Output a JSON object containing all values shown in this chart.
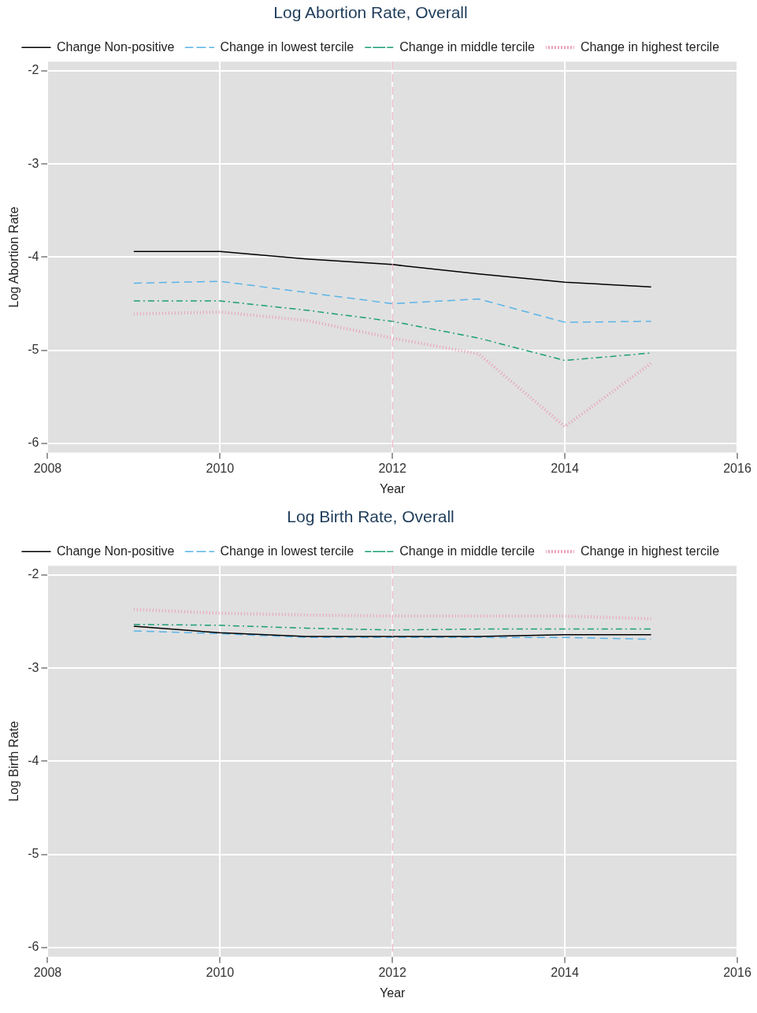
{
  "chart_data": [
    {
      "type": "line",
      "title": "Log Abortion Rate, Overall",
      "xlabel": "Year",
      "ylabel": "Log Abortion Rate",
      "x": [
        2009,
        2010,
        2011,
        2012,
        2013,
        2014,
        2015
      ],
      "series": [
        {
          "name": "Change Non-positive",
          "color": "#000000",
          "line_style": "solid",
          "values": [
            -3.94,
            -3.94,
            -4.02,
            -4.08,
            -4.18,
            -4.27,
            -4.32
          ]
        },
        {
          "name": "Change in lowest tercile",
          "color": "#5ab4e8",
          "line_style": "dashed",
          "values": [
            -4.28,
            -4.26,
            -4.38,
            -4.5,
            -4.45,
            -4.7,
            -4.69
          ]
        },
        {
          "name": "Change in middle tercile",
          "color": "#1a9e77",
          "line_style": "dashdot",
          "values": [
            -4.47,
            -4.47,
            -4.57,
            -4.69,
            -4.87,
            -5.11,
            -5.03
          ]
        },
        {
          "name": "Change in highest tercile",
          "color": "#e8a0b4",
          "line_style": "dotted",
          "values": [
            -4.61,
            -4.59,
            -4.68,
            -4.87,
            -5.04,
            -5.82,
            -5.14
          ]
        }
      ],
      "xlim": [
        2008,
        2016
      ],
      "xticks": [
        2008,
        2010,
        2012,
        2014,
        2016
      ],
      "ylim": [
        -6.1,
        -1.9
      ],
      "yticks": [
        -6,
        -5,
        -4,
        -3,
        -2
      ],
      "ref_lines": [
        {
          "axis": "x",
          "value": 2012,
          "color": "#e8a0b4",
          "line_style": "dashed"
        }
      ],
      "grid": true,
      "legend": "top",
      "marker": "none"
    },
    {
      "type": "line",
      "title": "Log Birth Rate, Overall",
      "xlabel": "Year",
      "ylabel": "Log Birth Rate",
      "x": [
        2009,
        2010,
        2011,
        2012,
        2013,
        2014,
        2015
      ],
      "series": [
        {
          "name": "Change Non-positive",
          "color": "#000000",
          "line_style": "solid",
          "values": [
            -2.55,
            -2.62,
            -2.66,
            -2.66,
            -2.66,
            -2.64,
            -2.64
          ]
        },
        {
          "name": "Change in lowest tercile",
          "color": "#5ab4e8",
          "line_style": "dashed",
          "values": [
            -2.6,
            -2.63,
            -2.67,
            -2.67,
            -2.67,
            -2.67,
            -2.69
          ]
        },
        {
          "name": "Change in middle tercile",
          "color": "#1a9e77",
          "line_style": "dashdot",
          "values": [
            -2.53,
            -2.54,
            -2.57,
            -2.59,
            -2.58,
            -2.58,
            -2.58
          ]
        },
        {
          "name": "Change in highest tercile",
          "color": "#e8a0b4",
          "line_style": "dotted",
          "values": [
            -2.37,
            -2.41,
            -2.43,
            -2.44,
            -2.44,
            -2.44,
            -2.47
          ]
        }
      ],
      "xlim": [
        2008,
        2016
      ],
      "xticks": [
        2008,
        2010,
        2012,
        2014,
        2016
      ],
      "ylim": [
        -6.1,
        -1.9
      ],
      "yticks": [
        -6,
        -5,
        -4,
        -3,
        -2
      ],
      "ref_lines": [
        {
          "axis": "x",
          "value": 2012,
          "color": "#e8a0b4",
          "line_style": "dashed"
        }
      ],
      "grid": true,
      "legend": "top",
      "marker": "none"
    }
  ]
}
